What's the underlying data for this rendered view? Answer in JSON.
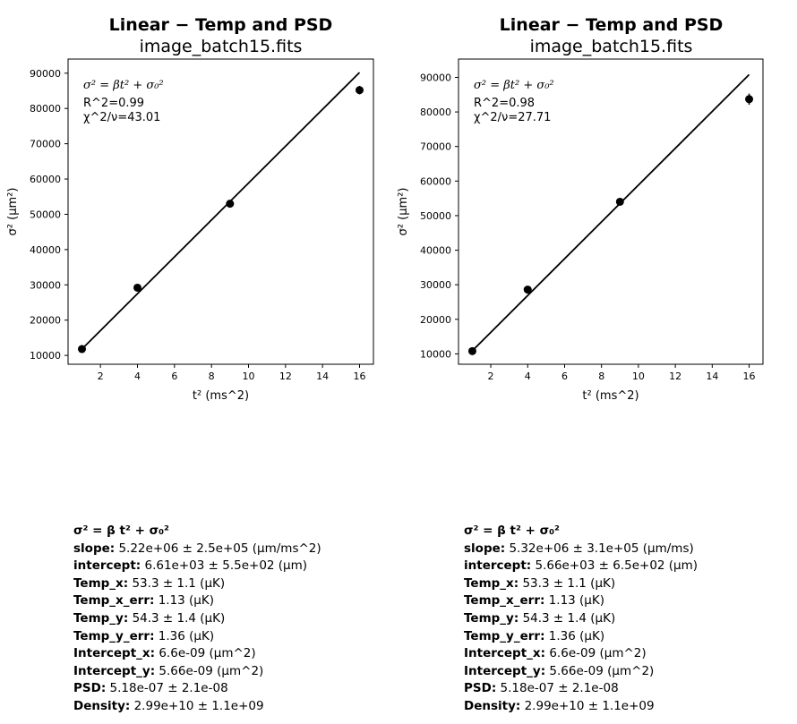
{
  "chart_data": [
    {
      "type": "scatter",
      "title": "Linear − Temp and PSD",
      "subtitle": "image_batch15.fits",
      "xlabel": "t² (ms^2)",
      "ylabel": "σ² (μm²)",
      "xlim": [
        0.25,
        16.75
      ],
      "ylim": [
        7500,
        94000
      ],
      "xticks": [
        2,
        4,
        6,
        8,
        10,
        12,
        14,
        16
      ],
      "yticks": [
        10000,
        20000,
        30000,
        40000,
        50000,
        60000,
        70000,
        80000,
        90000
      ],
      "ytick_labels": [
        "10000",
        "20000",
        "30000",
        "40000",
        "50000",
        "60000",
        "70000",
        "80000",
        "90000"
      ],
      "x": [
        1,
        4,
        9,
        16
      ],
      "y": [
        11800,
        29200,
        53000,
        85200
      ],
      "yerr": [
        0,
        0,
        0,
        1200
      ],
      "fit_line": {
        "x": [
          1,
          16
        ],
        "y": [
          11800,
          90200
        ]
      },
      "annotation": {
        "formula": "σ² = βt² + σ₀²",
        "r2": "R^2=0.99",
        "chi2": "χ^2/ν=43.01"
      }
    },
    {
      "type": "scatter",
      "title": "Linear − Temp and PSD",
      "subtitle": "image_batch15.fits",
      "xlabel": "t² (ms^2)",
      "ylabel": "σ² (μm²)",
      "xlim": [
        0.25,
        16.75
      ],
      "ylim": [
        7000,
        95300
      ],
      "xticks": [
        2,
        4,
        6,
        8,
        10,
        12,
        14,
        16
      ],
      "yticks": [
        10000,
        20000,
        30000,
        40000,
        50000,
        60000,
        70000,
        80000,
        90000
      ],
      "ytick_labels": [
        "10000",
        "20000",
        "30000",
        "40000",
        "50000",
        "60000",
        "70000",
        "80000",
        "90000"
      ],
      "x": [
        1,
        4,
        9,
        16
      ],
      "y": [
        10800,
        28600,
        54000,
        83700
      ],
      "yerr": [
        0,
        0,
        0,
        1600
      ],
      "fit_line": {
        "x": [
          1,
          16
        ],
        "y": [
          10900,
          90800
        ]
      },
      "annotation": {
        "formula": "σ² = βt² + σ₀²",
        "r2": "R^2=0.98",
        "chi2": "χ^2/ν=27.71"
      }
    }
  ],
  "info_left": {
    "header": "σ² = β t² + σ₀²",
    "rows": [
      {
        "label": "slope:",
        "value": "5.22e+06 ± 2.5e+05 (μm/ms^2)"
      },
      {
        "label": "intercept:",
        "value": "6.61e+03 ± 5.5e+02 (μm)"
      },
      {
        "label": "Temp_x:",
        "value": "53.3 ± 1.1 (μK)"
      },
      {
        "label": "Temp_x_err:",
        "value": "1.13 (μK)"
      },
      {
        "label": "Temp_y:",
        "value": "54.3 ± 1.4 (μK)"
      },
      {
        "label": "Temp_y_err:",
        "value": "1.36 (μK)"
      },
      {
        "label": "Intercept_x:",
        "value": "6.6e-09 (μm^2)"
      },
      {
        "label": "Intercept_y:",
        "value": "5.66e-09 (μm^2)"
      },
      {
        "label": "PSD:",
        "value": "5.18e-07 ± 2.1e-08"
      },
      {
        "label": "Density:",
        "value": "2.99e+10 ± 1.1e+09"
      }
    ]
  },
  "info_right": {
    "header": "σ² = β t² + σ₀²",
    "rows": [
      {
        "label": "slope:",
        "value": "5.32e+06 ± 3.1e+05 (μm/ms)"
      },
      {
        "label": "intercept:",
        "value": "5.66e+03 ± 6.5e+02 (μm)"
      },
      {
        "label": "Temp_x:",
        "value": "53.3 ± 1.1 (μK)"
      },
      {
        "label": "Temp_x_err:",
        "value": "1.13 (μK)"
      },
      {
        "label": "Temp_y:",
        "value": "54.3 ± 1.4 (μK)"
      },
      {
        "label": "Temp_y_err:",
        "value": "1.36 (μK)"
      },
      {
        "label": "Intercept_x:",
        "value": "6.6e-09 (μm^2)"
      },
      {
        "label": "Intercept_y:",
        "value": "5.66e-09 (μm^2)"
      },
      {
        "label": "PSD:",
        "value": "5.18e-07 ± 2.1e-08"
      },
      {
        "label": "Density:",
        "value": "2.99e+10 ± 1.1e+09"
      }
    ]
  }
}
